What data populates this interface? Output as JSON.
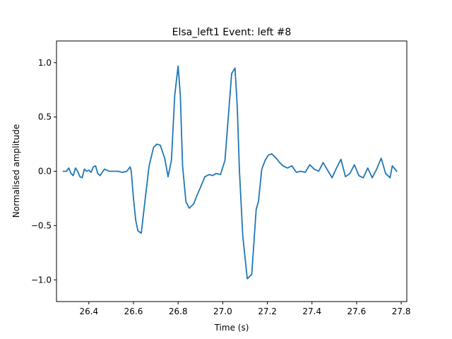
{
  "chart_data": {
    "type": "line",
    "title": "Elsa_left1 Event: left #8",
    "xlabel": "Time (s)",
    "ylabel": "Normalised amplitude",
    "xlim": [
      26.255,
      27.825
    ],
    "ylim": [
      -1.2,
      1.2
    ],
    "xticks": [
      26.4,
      26.6,
      26.8,
      27.0,
      27.2,
      27.4,
      27.6,
      27.8
    ],
    "xtick_labels": [
      "26.4",
      "26.6",
      "26.8",
      "27.0",
      "27.2",
      "27.4",
      "27.6",
      "27.8"
    ],
    "yticks": [
      -1.0,
      -0.5,
      0.0,
      0.5,
      1.0
    ],
    "ytick_labels": [
      "−1.0",
      "−0.5",
      "0.0",
      "0.5",
      "1.0"
    ],
    "grid": false,
    "series": [
      {
        "color": "#1f77b4",
        "x": [
          26.285,
          26.3,
          26.31,
          26.32,
          26.33,
          26.34,
          26.35,
          26.36,
          26.37,
          26.38,
          26.39,
          26.4,
          26.41,
          26.42,
          26.43,
          26.44,
          26.45,
          26.47,
          26.49,
          26.51,
          26.53,
          26.55,
          26.57,
          26.585,
          26.59,
          26.6,
          26.61,
          26.62,
          26.635,
          26.65,
          26.67,
          26.69,
          26.705,
          26.72,
          26.74,
          26.755,
          26.77,
          26.785,
          26.8,
          26.81,
          26.82,
          26.835,
          26.85,
          26.87,
          26.885,
          26.9,
          26.92,
          26.94,
          26.955,
          26.97,
          26.99,
          27.01,
          27.025,
          27.04,
          27.055,
          27.065,
          27.075,
          27.09,
          27.11,
          27.13,
          27.15,
          27.16,
          27.175,
          27.19,
          27.205,
          27.22,
          27.24,
          27.255,
          27.27,
          27.29,
          27.31,
          27.33,
          27.35,
          27.37,
          27.39,
          27.41,
          27.43,
          27.45,
          27.47,
          27.49,
          27.51,
          27.53,
          27.55,
          27.57,
          27.59,
          27.61,
          27.63,
          27.65,
          27.67,
          27.69,
          27.71,
          27.73,
          27.75,
          27.76,
          27.78
        ],
        "y": [
          0.0,
          0.0,
          0.03,
          -0.02,
          -0.04,
          0.03,
          0.0,
          -0.05,
          -0.06,
          0.02,
          0.0,
          0.01,
          -0.01,
          0.04,
          0.05,
          -0.02,
          -0.04,
          0.02,
          0.0,
          0.0,
          0.0,
          -0.01,
          0.0,
          0.04,
          0.0,
          -0.25,
          -0.45,
          -0.55,
          -0.57,
          -0.3,
          0.05,
          0.22,
          0.25,
          0.24,
          0.12,
          -0.05,
          0.1,
          0.7,
          0.97,
          0.7,
          0.05,
          -0.28,
          -0.34,
          -0.3,
          -0.22,
          -0.15,
          -0.05,
          -0.03,
          -0.04,
          -0.02,
          -0.03,
          0.1,
          0.5,
          0.9,
          0.95,
          0.6,
          0.0,
          -0.6,
          -0.99,
          -0.95,
          -0.35,
          -0.28,
          0.02,
          0.1,
          0.15,
          0.16,
          0.12,
          0.08,
          0.05,
          0.03,
          0.05,
          -0.01,
          0.0,
          -0.01,
          0.06,
          0.02,
          0.0,
          0.08,
          0.01,
          -0.06,
          0.03,
          0.11,
          -0.05,
          -0.02,
          0.06,
          -0.04,
          -0.06,
          0.03,
          -0.06,
          0.02,
          0.12,
          -0.02,
          -0.06,
          0.05,
          0.0
        ]
      }
    ]
  }
}
